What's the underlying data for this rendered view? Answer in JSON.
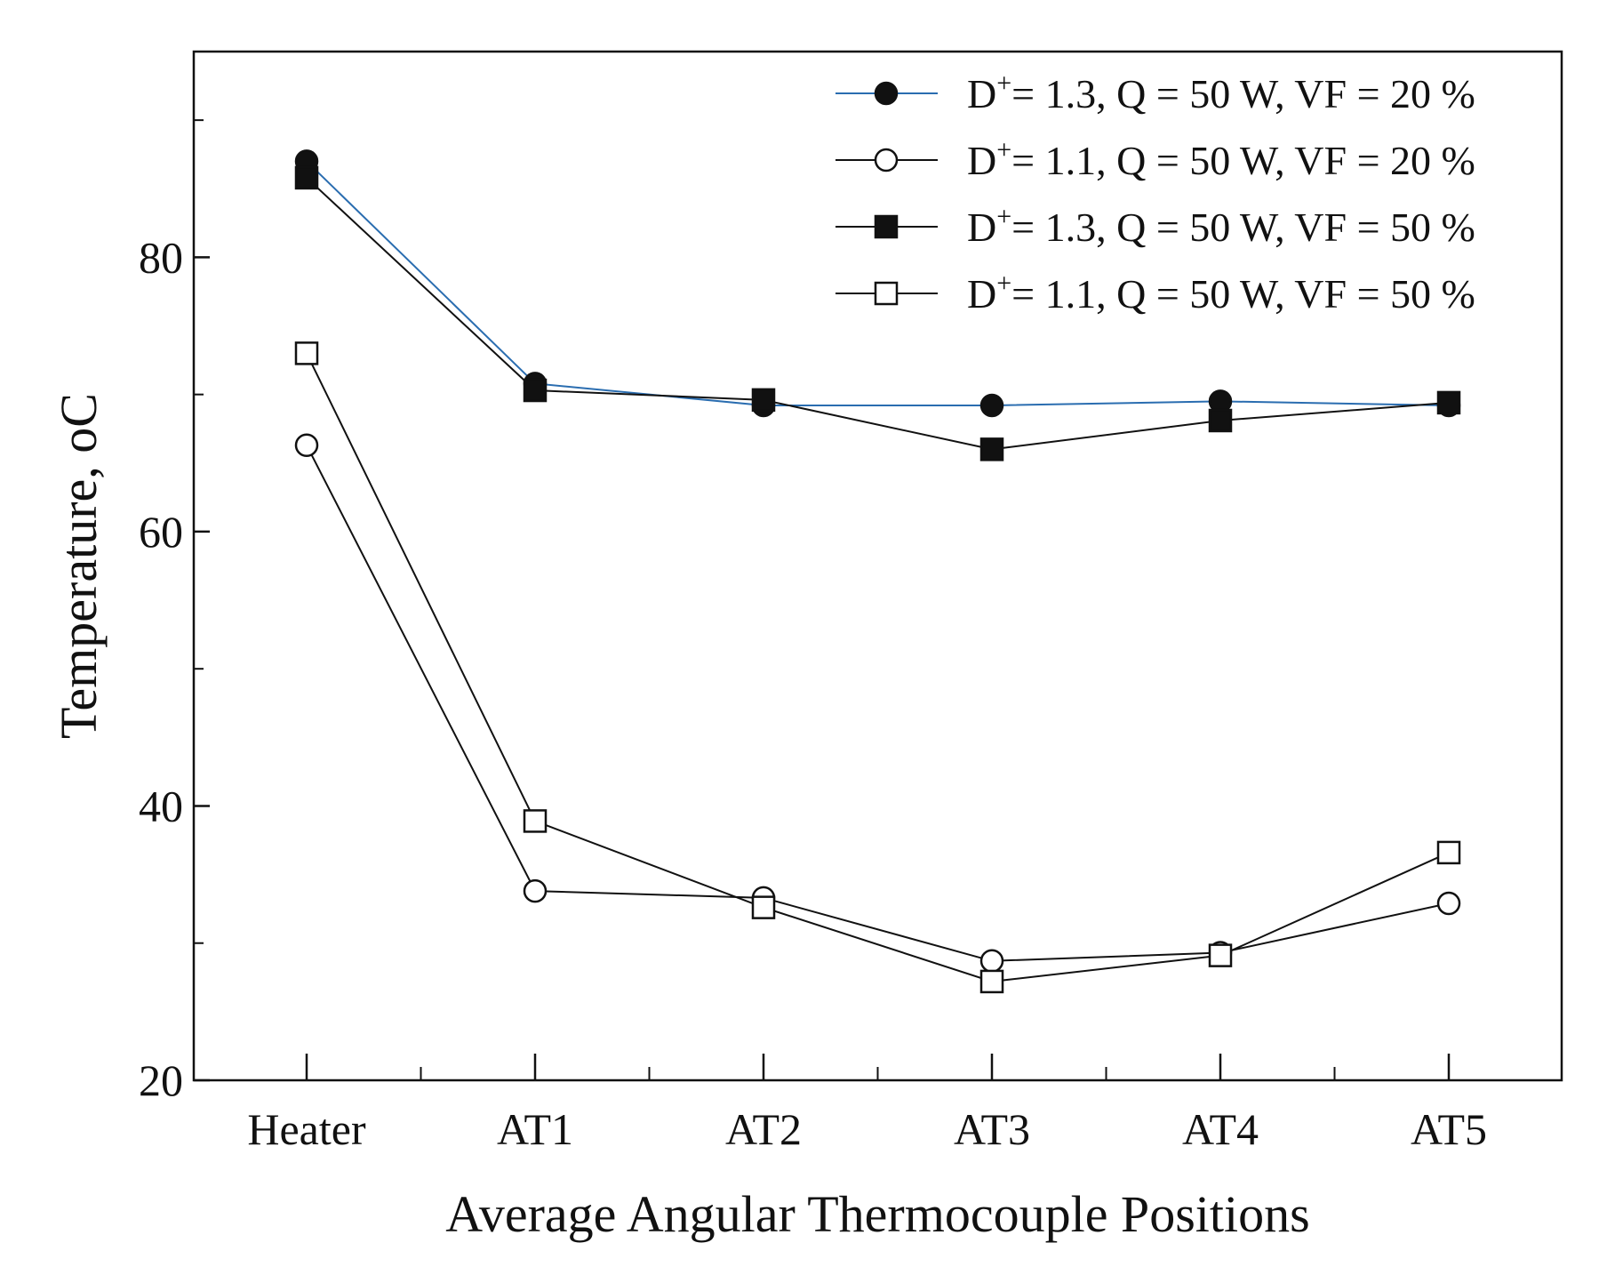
{
  "chart_data": {
    "type": "line",
    "title": "",
    "xlabel": "Average Angular Thermocouple Positions",
    "ylabel": "Temperature, ",
    "ylabel_unit": "oC",
    "categories": [
      "Heater",
      "AT1",
      "AT2",
      "AT3",
      "AT4",
      "AT5"
    ],
    "ylim": [
      20,
      95
    ],
    "yticks": [
      20,
      40,
      60,
      80
    ],
    "y_minor_ticks": [
      30,
      50,
      70,
      90
    ],
    "grid": false,
    "legend_position": "top-right",
    "series": [
      {
        "name": "D+ = 1.3, Q = 50 W, VF = 20 %",
        "legend_parts": [
          "D",
          "+",
          "= 1.3, Q = 50 W, VF = 20 %"
        ],
        "marker": "filled-circle",
        "line_color": "#2a6db0",
        "values": [
          87.0,
          70.8,
          69.2,
          69.2,
          69.5,
          69.2
        ]
      },
      {
        "name": "D+ = 1.1, Q = 50 W, VF = 20 %",
        "legend_parts": [
          "D",
          "+",
          "= 1.1, Q = 50 W, VF = 20 %"
        ],
        "marker": "open-circle",
        "line_color": "#111111",
        "values": [
          66.3,
          33.8,
          33.3,
          28.7,
          29.3,
          32.9
        ]
      },
      {
        "name": "D+ = 1.3, Q = 50 W, VF = 50 %",
        "legend_parts": [
          "D",
          "+",
          "= 1.3, Q = 50 W, VF = 50 %"
        ],
        "marker": "filled-square",
        "line_color": "#111111",
        "values": [
          85.8,
          70.3,
          69.6,
          66.0,
          68.1,
          69.4
        ]
      },
      {
        "name": "D+ = 1.1, Q = 50 W, VF = 50 %",
        "legend_parts": [
          "D",
          "+",
          "= 1.1, Q = 50 W, VF = 50 %"
        ],
        "marker": "open-square",
        "line_color": "#111111",
        "values": [
          73.0,
          38.9,
          32.6,
          27.2,
          29.1,
          36.6
        ]
      }
    ]
  }
}
